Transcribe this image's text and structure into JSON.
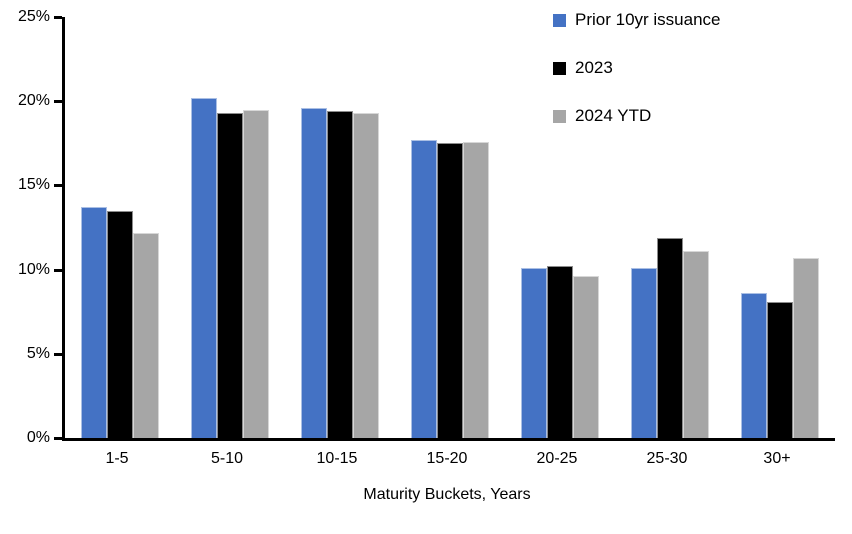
{
  "chart_data": {
    "type": "bar",
    "title": "",
    "categories": [
      "1-5",
      "5-10",
      "10-15",
      "15-20",
      "20-25",
      "25-30",
      "30+"
    ],
    "series": [
      {
        "name": "Prior 10yr issuance",
        "color": "#4472C4",
        "values": [
          13.7,
          20.2,
          19.6,
          17.7,
          10.1,
          10.1,
          8.6
        ]
      },
      {
        "name": "2023",
        "color": "#000000",
        "values": [
          13.5,
          19.3,
          19.4,
          17.5,
          10.2,
          11.9,
          8.1
        ]
      },
      {
        "name": "2024 YTD",
        "color": "#A6A6A6",
        "values": [
          12.2,
          19.5,
          19.3,
          17.6,
          9.6,
          11.1,
          10.7
        ]
      }
    ],
    "xlabel": "Maturity Buckets, Years",
    "ylabel": "",
    "ylim": [
      0,
      25
    ],
    "ytick_step": 5,
    "ytick_labels": [
      "0%",
      "5%",
      "10%",
      "15%",
      "20%",
      "25%"
    ],
    "grid": false,
    "legend_position": "top-right",
    "background_color": "#ffffff",
    "axis_color": "#000000"
  }
}
